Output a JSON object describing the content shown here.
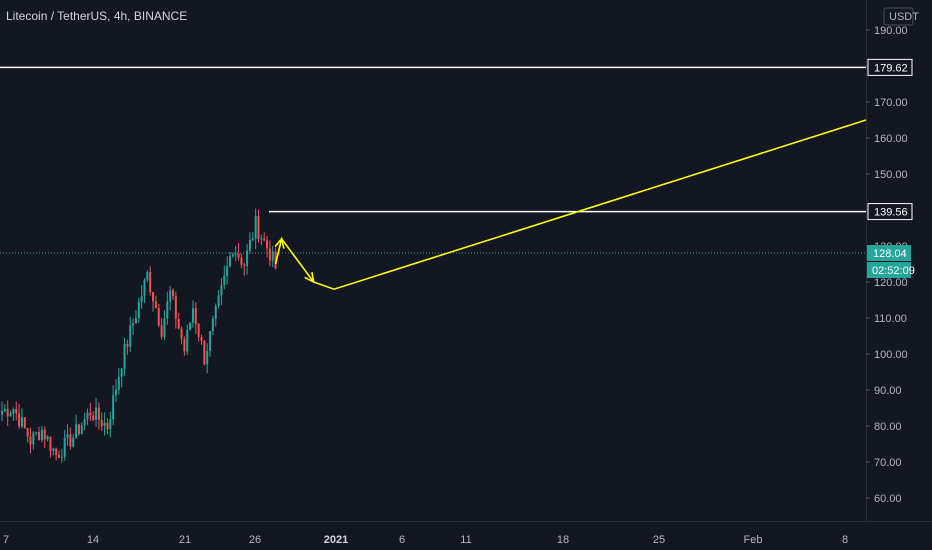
{
  "header": {
    "title": "Litecoin / TetherUS, 4h, BINANCE",
    "currency_label": "USDT"
  },
  "colors": {
    "background": "#131722",
    "axis_text": "#b2b5be",
    "up": "#26a69a",
    "down": "#ef5350",
    "drawing_yellow": "#ffff00",
    "drawing_white": "#ffffff",
    "price_badge": "#26a69a"
  },
  "chart_data": {
    "type": "candlestick",
    "title": "Litecoin / TetherUS, 4h, BINANCE",
    "timeframe": "4h",
    "ylim": [
      55,
      195
    ],
    "y_ticks": [
      "60.00",
      "70.00",
      "80.00",
      "90.00",
      "100.00",
      "110.00",
      "120.00",
      "130.00",
      "140.00",
      "150.00",
      "160.00",
      "170.00",
      "180.00",
      "190.00"
    ],
    "x_ticks": [
      {
        "label": "7"
      },
      {
        "label": "14"
      },
      {
        "label": "21"
      },
      {
        "label": "26"
      },
      {
        "label": "2021",
        "bold": true
      },
      {
        "label": "6"
      },
      {
        "label": "11"
      },
      {
        "label": "18"
      },
      {
        "label": "25"
      },
      {
        "label": "Feb"
      },
      {
        "label": "8"
      }
    ],
    "price_segments": [
      {
        "from": 84,
        "to": 85,
        "bars": 5
      },
      {
        "from": 85,
        "to": 76,
        "bars": 6
      },
      {
        "from": 76,
        "to": 79,
        "bars": 4
      },
      {
        "from": 79,
        "to": 72,
        "bars": 5
      },
      {
        "from": 72,
        "to": 77,
        "bars": 6
      },
      {
        "from": 77,
        "to": 84,
        "bars": 6
      },
      {
        "from": 84,
        "to": 80,
        "bars": 6
      },
      {
        "from": 80,
        "to": 98,
        "bars": 5
      },
      {
        "from": 98,
        "to": 122,
        "bars": 9
      },
      {
        "from": 122,
        "to": 107,
        "bars": 5
      },
      {
        "from": 107,
        "to": 117,
        "bars": 3
      },
      {
        "from": 117,
        "to": 101,
        "bars": 5
      },
      {
        "from": 101,
        "to": 113,
        "bars": 3
      },
      {
        "from": 113,
        "to": 99,
        "bars": 4
      },
      {
        "from": 99,
        "to": 111,
        "bars": 4
      },
      {
        "from": 111,
        "to": 130,
        "bars": 6
      },
      {
        "from": 130,
        "to": 125,
        "bars": 4
      },
      {
        "from": 125,
        "to": 136,
        "bars": 4
      },
      {
        "from": 136,
        "to": 128,
        "bars": 5
      },
      {
        "from": 128,
        "to": 124,
        "bars": 2
      }
    ],
    "horizontal_levels": [
      {
        "price": 179.62,
        "label": "179.62",
        "color": "#ffffff"
      },
      {
        "price": 139.56,
        "label": "139.56",
        "color": "#ffffff"
      }
    ],
    "current_price": {
      "price": 128.04,
      "label": "128.04",
      "countdown": "02:52:09"
    },
    "projection_path": [
      {
        "date": "Dec 28",
        "price": 125
      },
      {
        "date": "Dec 28",
        "price": 132
      },
      {
        "date": "Dec 30",
        "price": 120
      },
      {
        "date": "Jan 1",
        "price": 118
      },
      {
        "date": "Feb 10",
        "price": 165
      }
    ]
  }
}
